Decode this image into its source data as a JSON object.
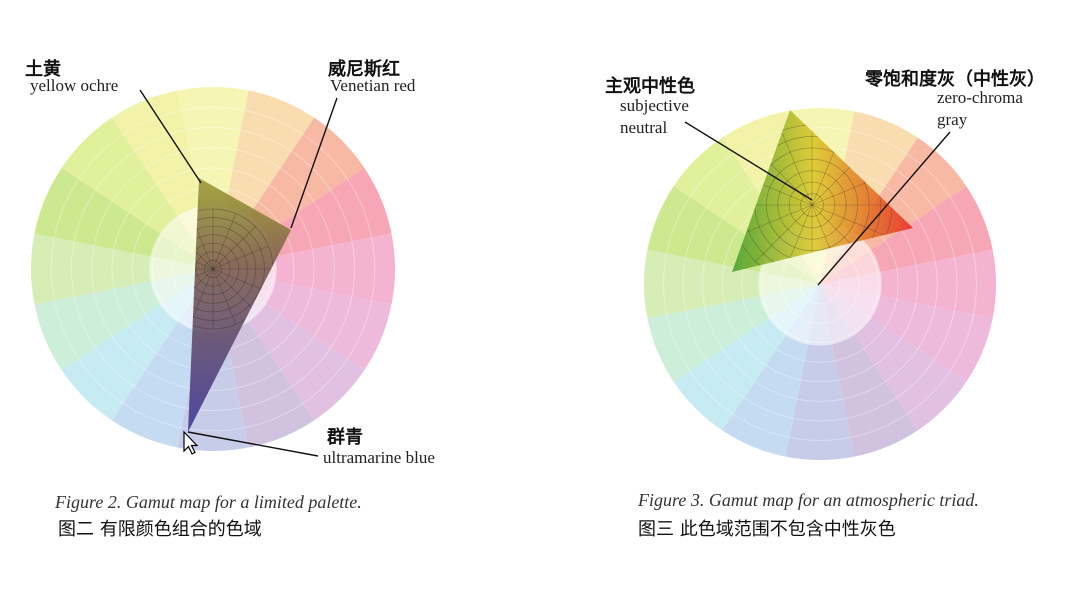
{
  "figure2": {
    "labels": {
      "yellow_ochre_zh": "土黄",
      "yellow_ochre_en": "yellow ochre",
      "venetian_red_zh": "威尼斯红",
      "venetian_red_en": "Venetian red",
      "ultramarine_zh": "群青",
      "ultramarine_en": "ultramarine blue"
    },
    "caption_en": "Figure 2. Gamut map for a limited palette.",
    "caption_zh": "图二 有限颜色组合的色域"
  },
  "figure3": {
    "labels": {
      "subjective_zh": "主观中性色",
      "subjective_en_1": "subjective",
      "subjective_en_2": "neutral",
      "zero_chroma_zh": "零饱和度灰（中性灰）",
      "zero_chroma_en_1": "zero-chroma",
      "zero_chroma_en_2": "gray"
    },
    "caption_en": "Figure 3. Gamut map for an atmospheric triad.",
    "caption_zh": "图三 此色域范围不包含中性灰色"
  },
  "wheel_colors": [
    "#f6f6b4",
    "#f9ddb0",
    "#f8b9a4",
    "#f6a6b4",
    "#f4b3d0",
    "#eebadc",
    "#e1c0e2",
    "#d1c2e0",
    "#c7cce8",
    "#c5dbf1",
    "#c6ebf3",
    "#cdeed9",
    "#d6edb6",
    "#cde98f",
    "#e1f09a",
    "#f2f3a8"
  ],
  "cursor": "arrow-cursor-icon"
}
